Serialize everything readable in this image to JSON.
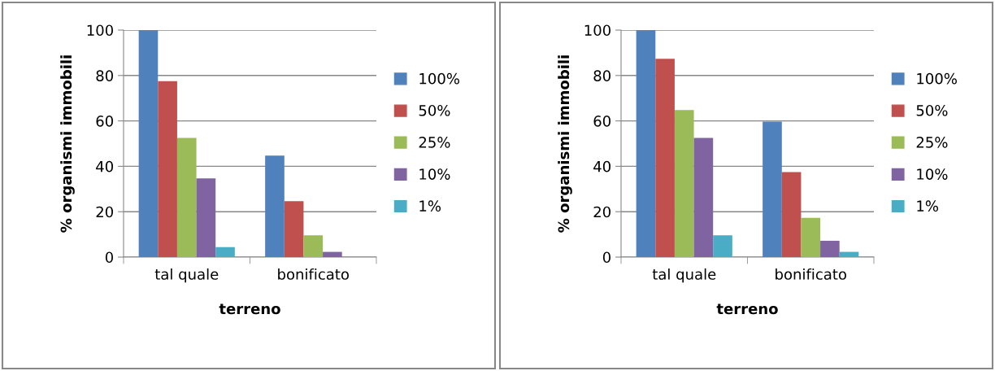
{
  "chart_data": [
    {
      "type": "bar",
      "xlabel": "terreno",
      "ylabel": "% organismi immobili",
      "categories": [
        "tal quale",
        "bonificato"
      ],
      "ylim": [
        0,
        100
      ],
      "yticks": [
        0,
        20,
        40,
        60,
        80,
        100
      ],
      "grid": "y",
      "legend": "right",
      "series": [
        {
          "name": "100%",
          "color": "#4f81bd",
          "values": [
            100,
            44.7
          ]
        },
        {
          "name": "50%",
          "color": "#c0504d",
          "values": [
            77.5,
            24.6
          ]
        },
        {
          "name": "25%",
          "color": "#9bbb59",
          "values": [
            52.5,
            9.6
          ]
        },
        {
          "name": "10%",
          "color": "#8064a2",
          "values": [
            34.7,
            2.3
          ]
        },
        {
          "name": "1%",
          "color": "#4bacc6",
          "values": [
            4.4,
            0
          ]
        }
      ]
    },
    {
      "type": "bar",
      "xlabel": "terreno",
      "ylabel": "% organismi immobili",
      "categories": [
        "tal quale",
        "bonificato"
      ],
      "ylim": [
        0,
        100
      ],
      "yticks": [
        0,
        20,
        40,
        60,
        80,
        100
      ],
      "grid": "y",
      "legend": "right",
      "series": [
        {
          "name": "100%",
          "color": "#4f81bd",
          "values": [
            100,
            59.7
          ]
        },
        {
          "name": "50%",
          "color": "#c0504d",
          "values": [
            87.4,
            37.5
          ]
        },
        {
          "name": "25%",
          "color": "#9bbb59",
          "values": [
            64.8,
            17.3
          ]
        },
        {
          "name": "10%",
          "color": "#8064a2",
          "values": [
            52.5,
            7.2
          ]
        },
        {
          "name": "1%",
          "color": "#4bacc6",
          "values": [
            9.6,
            2.3
          ]
        }
      ]
    }
  ]
}
